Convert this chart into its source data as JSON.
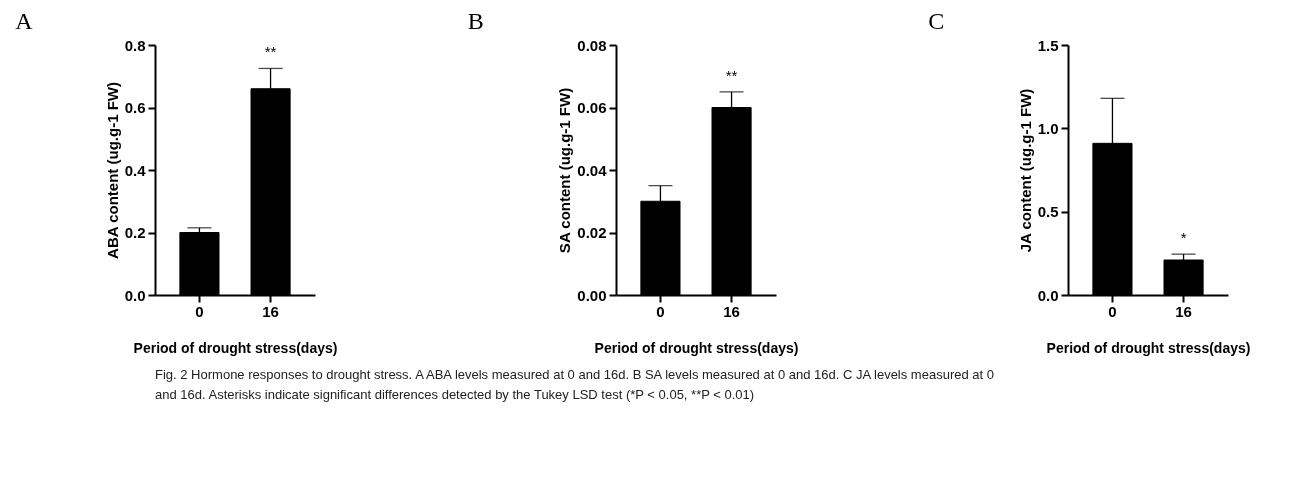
{
  "chart_data": [
    {
      "type": "bar",
      "title": "A",
      "categories": [
        "0",
        "16"
      ],
      "values": [
        0.2,
        0.66
      ],
      "errors": [
        0.015,
        0.065
      ],
      "color": "#000000",
      "xlabel": "Period of drought stress(days)",
      "ylabel": "ABA content (ug.g-1 FW)",
      "ylim": [
        0,
        0.8
      ],
      "yticks": [
        {
          "value": 0,
          "label": "0.0"
        },
        0.2,
        0.4,
        0.6,
        0.8
      ],
      "value_labels": [
        null,
        "**"
      ],
      "annotations": [
        "Fig. 2  Hormone responses to drought stress. A ABA levels measured at 0 and 16d. B SA levels measured at 0 and 16d. C JA levels measured at 0",
        "and 16d. Asterisks indicate significant differences detected by the Tukey LSD test (*P < 0.05, **P < 0.01)"
      ]
    },
    {
      "type": "bar",
      "title": "B",
      "categories": [
        "0",
        "16"
      ],
      "values": [
        0.03,
        0.06
      ],
      "errors": [
        0.005,
        0.005
      ],
      "color": "#000000",
      "xlabel": "Period of drought stress(days)",
      "ylabel": "SA content (ug.g-1 FW)",
      "ylim": [
        0,
        0.08
      ],
      "yticks": [
        {
          "value": 0,
          "label": "0.00"
        },
        0.02,
        0.04,
        0.06,
        0.08
      ],
      "value_labels": [
        null,
        "**"
      ]
    },
    {
      "type": "bar",
      "title": "C",
      "categories": [
        "0",
        "16"
      ],
      "values": [
        0.91,
        0.21
      ],
      "errors": [
        0.27,
        0.035
      ],
      "color": "#000000",
      "xlabel": "Period of drought stress(days)",
      "ylabel": "JA content (ug.g-1 FW)",
      "ylim": [
        0,
        1.5
      ],
      "yticks": [
        {
          "value": 0,
          "label": "0.0"
        },
        {
          "value": 0.5,
          "label": "0.5"
        },
        {
          "value": 1,
          "label": "1.0"
        },
        1.5
      ],
      "value_labels": [
        null,
        "*"
      ]
    }
  ]
}
